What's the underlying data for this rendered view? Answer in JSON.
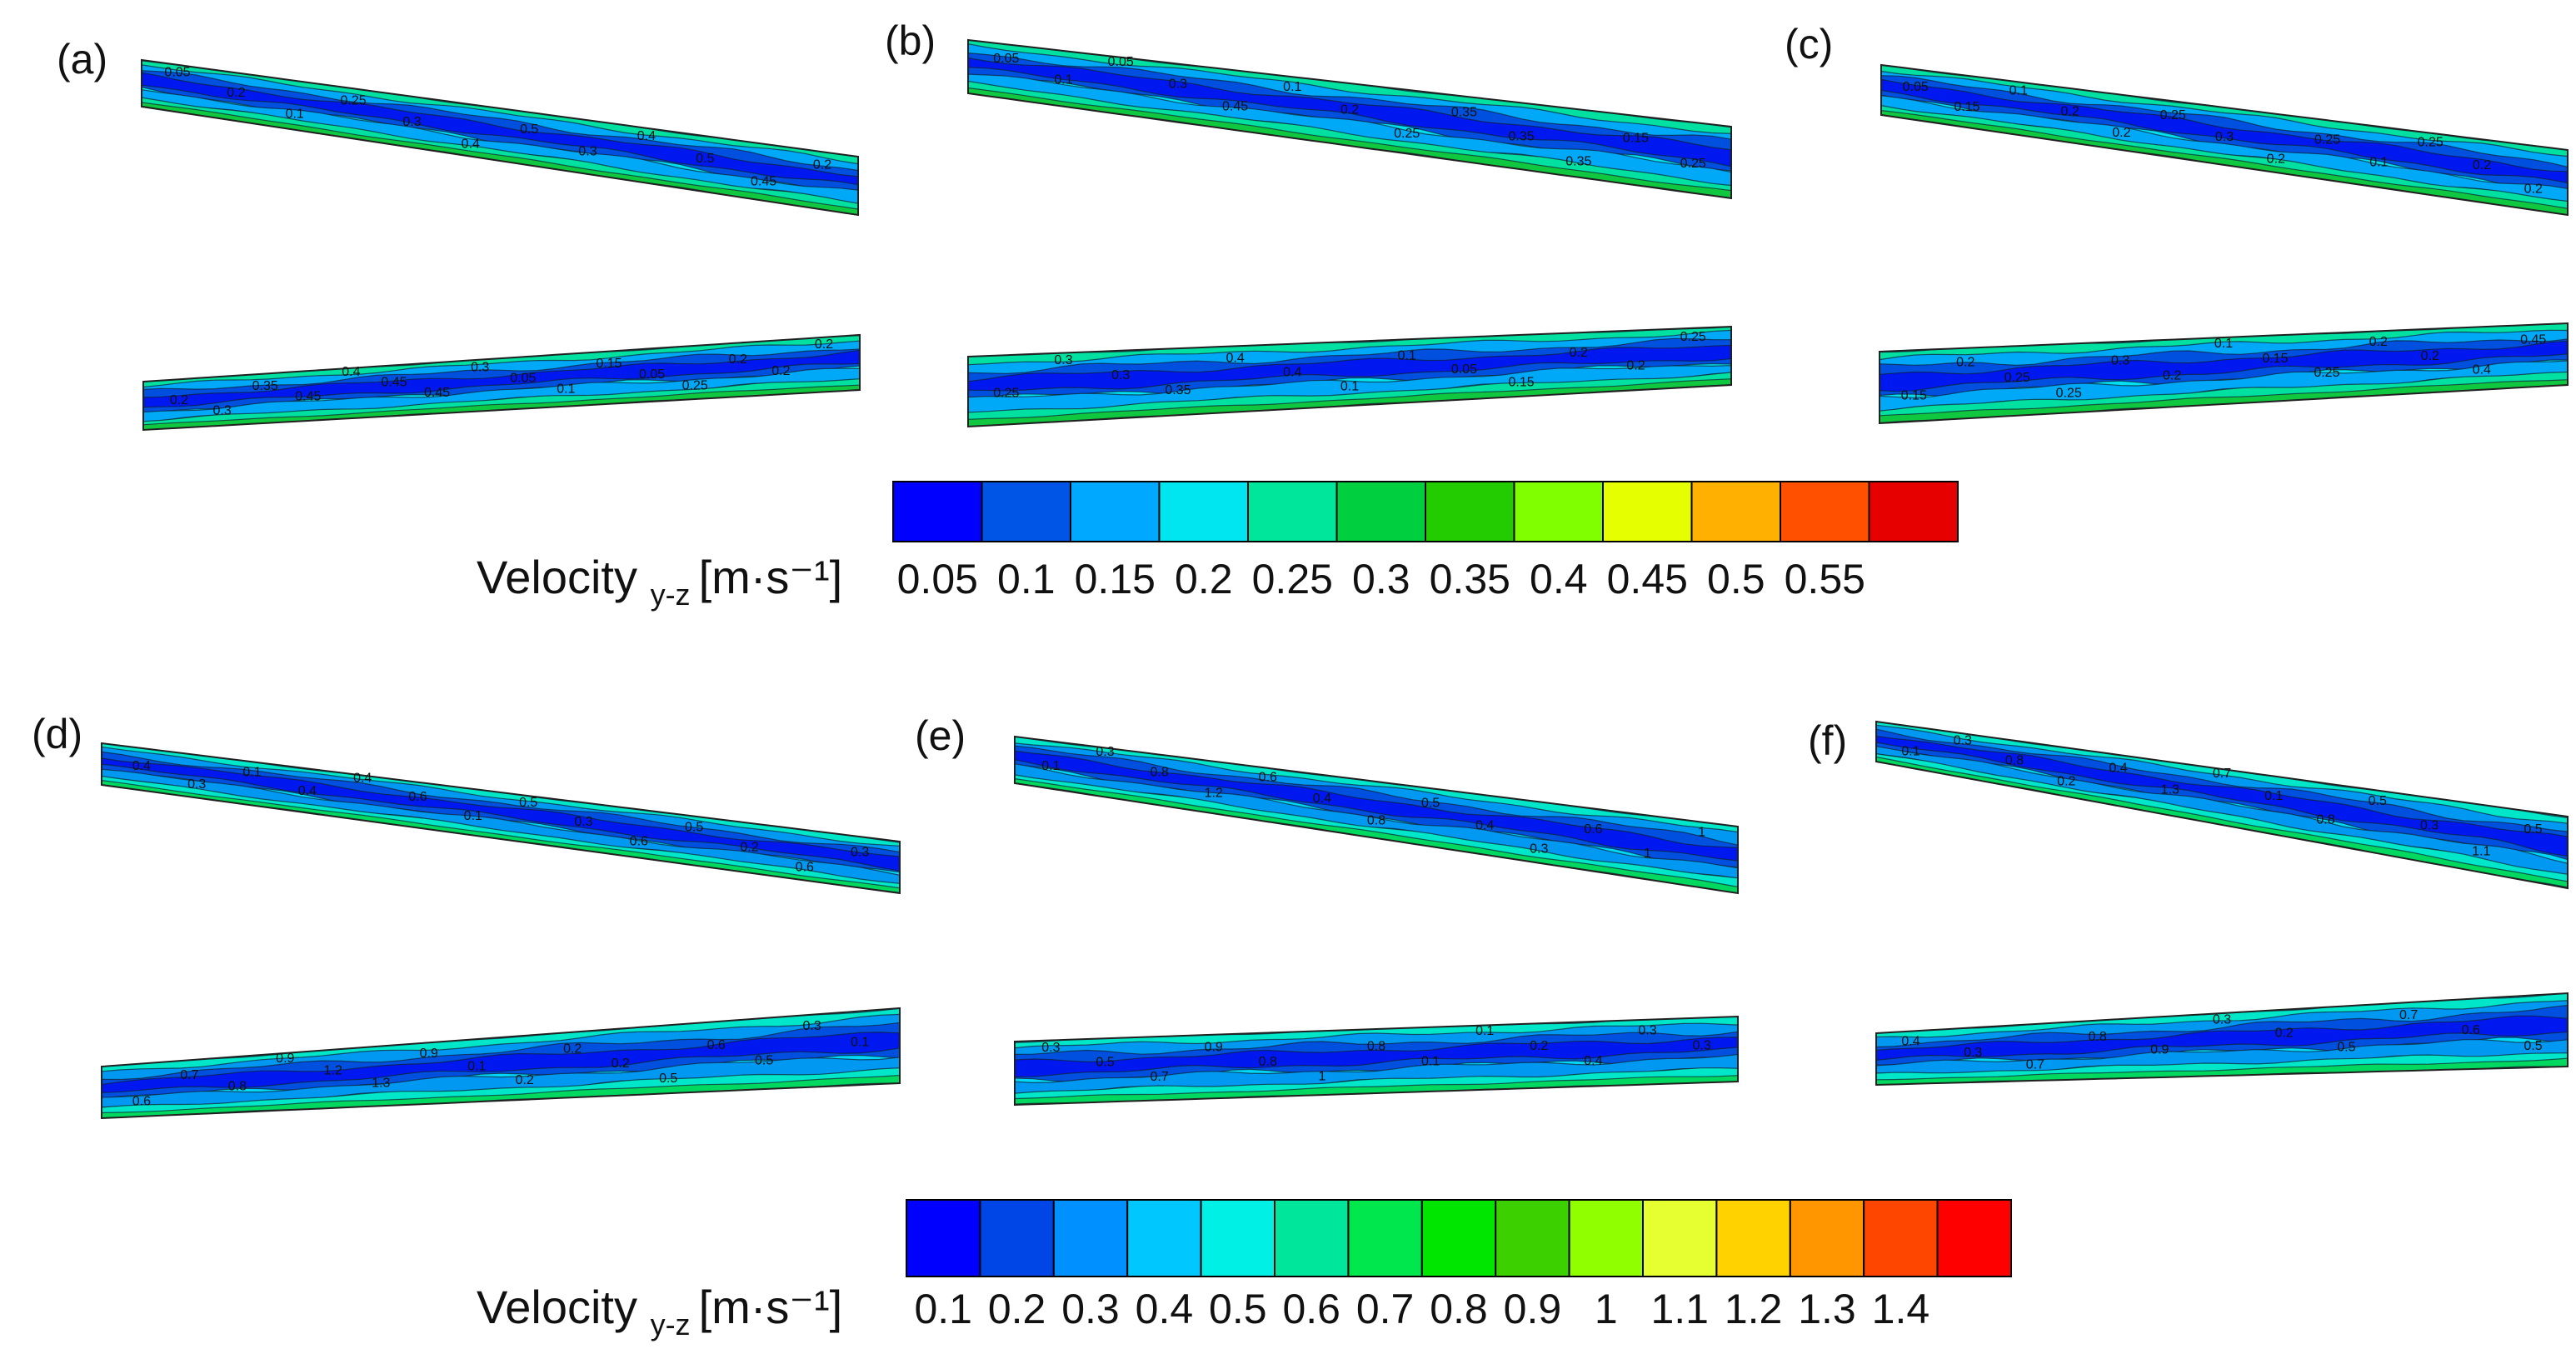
{
  "chart_data": {
    "type": "heatmap",
    "subtype": "contour-map",
    "panels": [
      {
        "label": "(a)",
        "group": 0,
        "upper_labels": [
          "0.05",
          "0.2",
          "0.1",
          "0.25",
          "0.3",
          "0.4",
          "0.5",
          "0.3",
          "0.4",
          "0.5",
          "0.45",
          "0.2"
        ],
        "lower_labels": [
          "0.2",
          "0.3",
          "0.35",
          "0.45",
          "0.4",
          "0.45",
          "0.45",
          "0.3",
          "0.05",
          "0.1",
          "0.15",
          "0.05",
          "0.25",
          "0.2",
          "0.2",
          "0.2"
        ]
      },
      {
        "label": "(b)",
        "group": 0,
        "upper_labels": [
          "0.05",
          "0.1",
          "0.05",
          "0.3",
          "0.45",
          "0.1",
          "0.2",
          "0.25",
          "0.35",
          "0.35",
          "0.35",
          "0.15",
          "0.25"
        ],
        "lower_labels": [
          "0.25",
          "0.3",
          "0.3",
          "0.35",
          "0.4",
          "0.4",
          "0.1",
          "0.1",
          "0.05",
          "0.15",
          "0.2",
          "0.2",
          "0.25"
        ]
      },
      {
        "label": "(c)",
        "group": 0,
        "upper_labels": [
          "0.05",
          "0.15",
          "0.1",
          "0.2",
          "0.2",
          "0.25",
          "0.3",
          "0.2",
          "0.25",
          "0.1",
          "0.25",
          "0.2",
          "0.2"
        ],
        "lower_labels": [
          "0.15",
          "0.2",
          "0.25",
          "0.25",
          "0.3",
          "0.2",
          "0.1",
          "0.15",
          "0.25",
          "0.2",
          "0.2",
          "0.4",
          "0.45"
        ]
      },
      {
        "label": "(d)",
        "group": 1,
        "upper_labels": [
          "0.4",
          "0.3",
          "0.1",
          "0.4",
          "0.4",
          "0.6",
          "0.1",
          "0.5",
          "0.3",
          "0.6",
          "0.5",
          "0.2",
          "0.6",
          "0.3"
        ],
        "lower_labels": [
          "0.6",
          "0.7",
          "0.8",
          "0.9",
          "1.2",
          "1.3",
          "0.9",
          "0.1",
          "0.2",
          "0.2",
          "0.2",
          "0.5",
          "0.6",
          "0.5",
          "0.3",
          "0.1"
        ]
      },
      {
        "label": "(e)",
        "group": 1,
        "upper_labels": [
          "0.1",
          "0.3",
          "0.8",
          "1.2",
          "0.6",
          "0.4",
          "0.8",
          "0.5",
          "0.4",
          "0.3",
          "0.6",
          "1",
          "1"
        ],
        "lower_labels": [
          "0.3",
          "0.5",
          "0.7",
          "0.9",
          "0.8",
          "1",
          "0.8",
          "0.1",
          "0.1",
          "0.2",
          "0.4",
          "0.3",
          "0.3"
        ]
      },
      {
        "label": "(f)",
        "group": 1,
        "upper_labels": [
          "0.1",
          "0.3",
          "0.8",
          "0.2",
          "0.4",
          "1.3",
          "0.7",
          "0.1",
          "0.8",
          "0.5",
          "0.3",
          "1.1",
          "0.5"
        ],
        "lower_labels": [
          "0.4",
          "0.3",
          "0.7",
          "0.8",
          "0.9",
          "0.3",
          "0.2",
          "0.5",
          "0.7",
          "0.6",
          "0.5"
        ]
      }
    ],
    "colorbars": [
      {
        "title": "Velocity",
        "subscript": "y-z",
        "unit": "[m·s⁻¹]",
        "ticks": [
          "0.05",
          "0.1",
          "0.15",
          "0.2",
          "0.25",
          "0.3",
          "0.35",
          "0.4",
          "0.45",
          "0.5",
          "0.55"
        ],
        "colors": [
          "#0000FF",
          "#0055E6",
          "#00A8FF",
          "#00E6F0",
          "#00E69A",
          "#00D040",
          "#22CC00",
          "#80FF00",
          "#E6FF00",
          "#FFB000",
          "#FF5000",
          "#E60000"
        ]
      },
      {
        "title": "Velocity",
        "subscript": "y-z",
        "unit": "[m·s⁻¹]",
        "ticks": [
          "0.1",
          "0.2",
          "0.3",
          "0.4",
          "0.5",
          "0.6",
          "0.7",
          "0.8",
          "0.9",
          "1",
          "1.1",
          "1.2",
          "1.3",
          "1.4"
        ],
        "colors": [
          "#0000FF",
          "#0045E6",
          "#0090FF",
          "#00C8FF",
          "#00F0E6",
          "#00E69A",
          "#00E64D",
          "#00E600",
          "#3CD000",
          "#90FF00",
          "#E6FF30",
          "#FFD200",
          "#FF9600",
          "#FF4600",
          "#FF0000"
        ]
      }
    ]
  }
}
